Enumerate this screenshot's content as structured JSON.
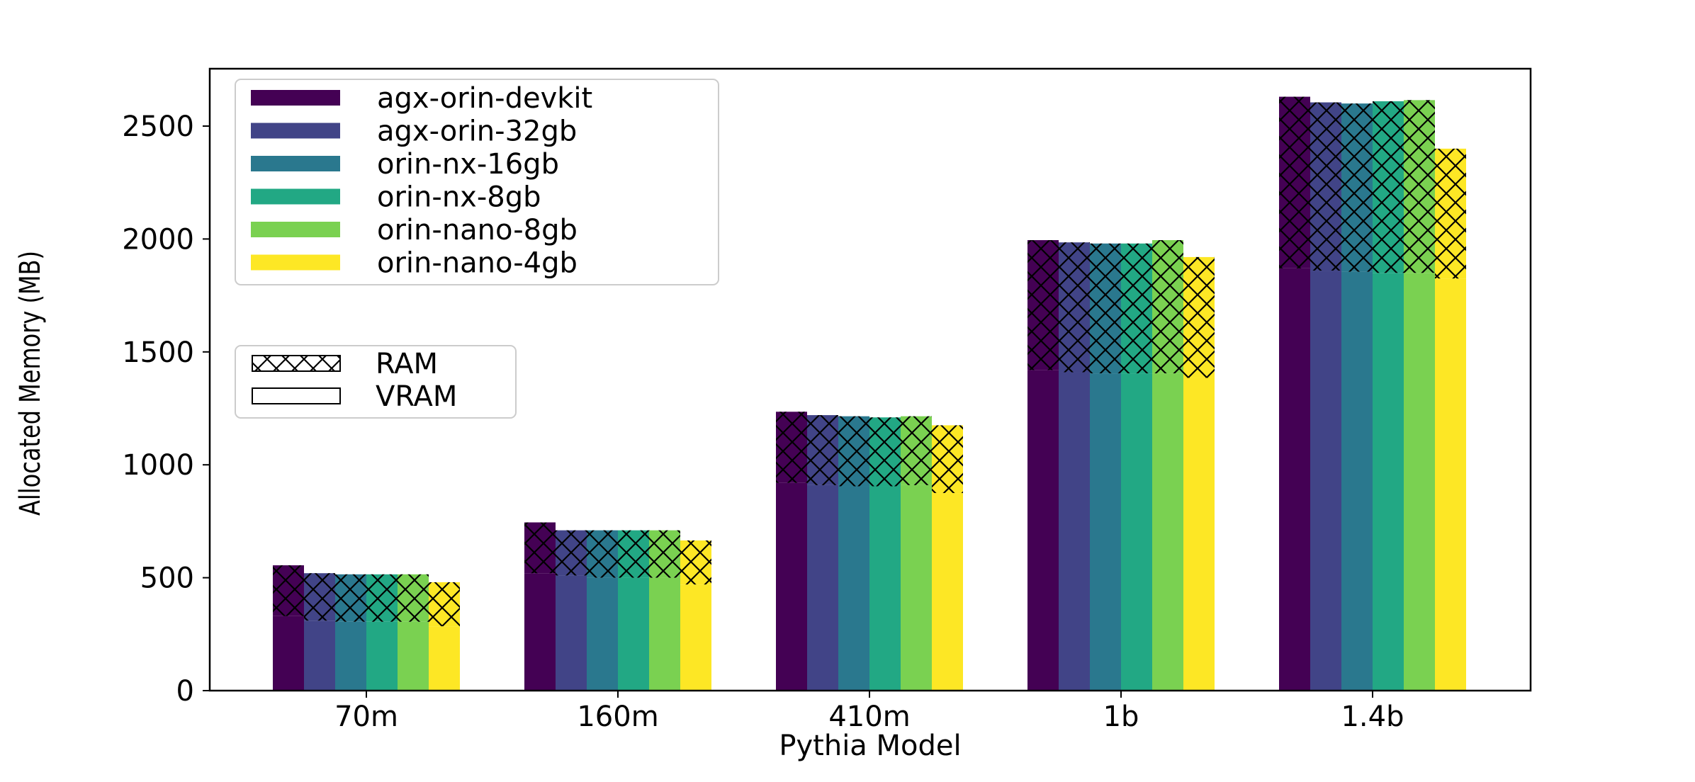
{
  "chart_data": {
    "type": "bar",
    "xlabel": "Pythia Model",
    "ylabel": "Allocated Memory (MB)",
    "categories": [
      "70m",
      "160m",
      "410m",
      "1b",
      "1.4b"
    ],
    "ylim": [
      0,
      2600
    ],
    "yticks": [
      0,
      500,
      1000,
      1500,
      2000,
      2500
    ],
    "stacked_components": [
      "VRAM",
      "RAM"
    ],
    "series": [
      {
        "name": "agx-orin-devkit",
        "color": "#440154",
        "vram": [
          330,
          520,
          920,
          1420,
          1870
        ],
        "ram": [
          225,
          225,
          315,
          575,
          760
        ]
      },
      {
        "name": "agx-orin-32gb",
        "color": "#414487",
        "vram": [
          310,
          510,
          910,
          1410,
          1860
        ],
        "ram": [
          210,
          200,
          310,
          575,
          745
        ]
      },
      {
        "name": "orin-nx-16gb",
        "color": "#2a788e",
        "vram": [
          305,
          500,
          905,
          1405,
          1855
        ],
        "ram": [
          210,
          210,
          310,
          575,
          745
        ]
      },
      {
        "name": "orin-nx-8gb",
        "color": "#22a884",
        "vram": [
          305,
          500,
          905,
          1405,
          1850
        ],
        "ram": [
          210,
          210,
          305,
          575,
          760
        ]
      },
      {
        "name": "orin-nano-8gb",
        "color": "#7ad151",
        "vram": [
          305,
          500,
          910,
          1405,
          1850
        ],
        "ram": [
          210,
          210,
          305,
          590,
          765
        ]
      },
      {
        "name": "orin-nano-4gb",
        "color": "#fde725",
        "vram": [
          285,
          470,
          875,
          1385,
          1825
        ],
        "ram": [
          195,
          195,
          300,
          535,
          575
        ]
      }
    ],
    "legend": {
      "placement": "top-left",
      "entries": [
        "agx-orin-devkit",
        "agx-orin-32gb",
        "orin-nx-16gb",
        "orin-nx-8gb",
        "orin-nano-8gb",
        "orin-nano-4gb"
      ]
    },
    "hatch_legend": {
      "placement": "left",
      "entries": [
        {
          "label": "RAM",
          "hatch": "crosshatch"
        },
        {
          "label": "VRAM",
          "hatch": "none"
        }
      ]
    },
    "grid": false
  }
}
